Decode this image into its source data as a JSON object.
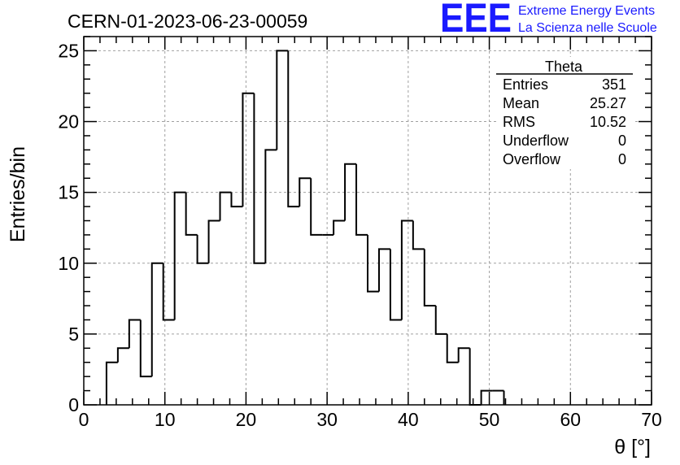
{
  "chart_data": {
    "type": "bar",
    "title": "CERN-01-2023-06-23-00059",
    "xlabel": "θ [°]",
    "ylabel": "Entries/bin",
    "xlim": [
      0,
      70
    ],
    "ylim": [
      0,
      26
    ],
    "grid": true,
    "bin_width": 1.4,
    "x_ticks": [
      0,
      10,
      20,
      30,
      40,
      50,
      60,
      70
    ],
    "y_ticks": [
      0,
      5,
      10,
      15,
      20,
      25
    ],
    "bin_edges": [
      2.8,
      4.2,
      5.6,
      7.0,
      8.4,
      9.8,
      11.2,
      12.6,
      14.0,
      15.4,
      16.8,
      18.2,
      19.6,
      21.0,
      22.4,
      23.8,
      25.2,
      26.6,
      28.0,
      29.4,
      30.8,
      32.2,
      33.6,
      35.0,
      36.4,
      37.8,
      39.2,
      40.6,
      42.0,
      43.4,
      44.8,
      46.2,
      47.6,
      49.0,
      50.4,
      51.8
    ],
    "values": [
      3,
      4,
      6,
      2,
      10,
      6,
      15,
      12,
      10,
      13,
      15,
      14,
      22,
      10,
      18,
      25,
      14,
      16,
      12,
      12,
      13,
      17,
      12,
      8,
      11,
      6,
      13,
      11,
      7,
      5,
      3,
      4,
      0,
      1,
      1
    ]
  },
  "stats_box": {
    "name": "Theta",
    "rows": [
      {
        "label": "Entries",
        "value": "351"
      },
      {
        "label": "Mean",
        "value": "25.27"
      },
      {
        "label": "RMS",
        "value": "10.52"
      },
      {
        "label": "Underflow",
        "value": "0"
      },
      {
        "label": "Overflow",
        "value": "0"
      }
    ]
  },
  "logo": {
    "mark": "EEE",
    "line1": "Extreme Energy Events",
    "line2": "La Scienza nelle Scuole",
    "color": "#1a1aff"
  },
  "colors": {
    "histogram": "#000000",
    "grid": "#a0a0a0"
  }
}
